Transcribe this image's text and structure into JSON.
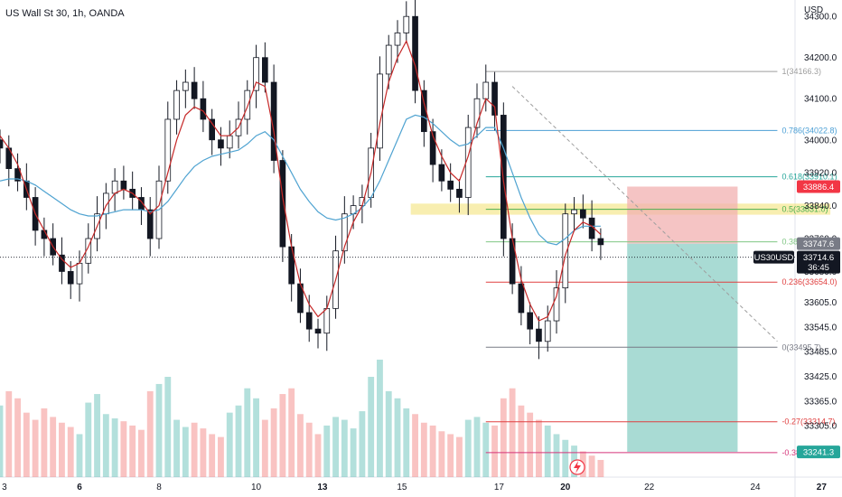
{
  "symbol_title": "US Wall St 30, 1h, OANDA",
  "colors": {
    "up": "#26a69a",
    "down": "#ef5350",
    "ma_fast": "#c62828",
    "ma_slow": "#4fa3d1",
    "zone": "#f2e06f",
    "stop": "#f1b0b0",
    "target": "#8ccfc6"
  },
  "chart_data": {
    "type": "candlestick",
    "y_axis_title": "USD",
    "ylim": [
      33180,
      34340
    ],
    "yticks": [
      34300.0,
      34200.0,
      34100.0,
      34000.0,
      33920.0,
      33840.0,
      33760.0,
      33680.0,
      33605.0,
      33545.0,
      33485.0,
      33425.0,
      33365.0,
      33305.0
    ],
    "xlim": [
      0,
      90
    ],
    "xticks": [
      {
        "label": "3",
        "x": 0.5,
        "bold": false
      },
      {
        "label": "6",
        "x": 9,
        "bold": true
      },
      {
        "label": "8",
        "x": 18,
        "bold": false
      },
      {
        "label": "10",
        "x": 29,
        "bold": false
      },
      {
        "label": "13",
        "x": 36.5,
        "bold": true
      },
      {
        "label": "15",
        "x": 45.5,
        "bold": false
      },
      {
        "label": "17",
        "x": 56.5,
        "bold": false
      },
      {
        "label": "20",
        "x": 64,
        "bold": true
      },
      {
        "label": "22",
        "x": 73.5,
        "bold": false
      },
      {
        "label": "24",
        "x": 85.5,
        "bold": false
      },
      {
        "label": "27",
        "x": 93,
        "bold": true
      }
    ],
    "close": [
      33980,
      33930,
      33900,
      33860,
      33780,
      33760,
      33720,
      33680,
      33650,
      33700,
      33760,
      33820,
      33870,
      33900,
      33880,
      33860,
      33830,
      33760,
      33900,
      34050,
      34120,
      34140,
      34100,
      34050,
      34000,
      33980,
      34010,
      34050,
      34120,
      34200,
      34140,
      33950,
      33740,
      33650,
      33580,
      33540,
      33530,
      33590,
      33730,
      33820,
      33840,
      33860,
      33980,
      34160,
      34230,
      34260,
      34300,
      34120,
      34020,
      33940,
      33900,
      33880,
      33860,
      34030,
      34100,
      34140,
      34060,
      33760,
      33650,
      33580,
      33540,
      33510,
      33560,
      33640,
      33820,
      33830,
      33810,
      33760,
      33745
    ],
    "volume": [
      50,
      60,
      55,
      45,
      40,
      48,
      42,
      38,
      35,
      30,
      52,
      58,
      44,
      41,
      39,
      36,
      33,
      60,
      65,
      70,
      40,
      35,
      38,
      34,
      30,
      28,
      45,
      50,
      62,
      55,
      40,
      48,
      58,
      62,
      44,
      38,
      30,
      36,
      42,
      40,
      34,
      46,
      70,
      82,
      60,
      55,
      48,
      44,
      38,
      36,
      32,
      30,
      28,
      40,
      42,
      38,
      36,
      55,
      62,
      50,
      45,
      40,
      36,
      30,
      26,
      22,
      18,
      15,
      12
    ],
    "ma_fast": [
      34010,
      33980,
      33940,
      33880,
      33820,
      33780,
      33740,
      33710,
      33690,
      33700,
      33740,
      33790,
      33840,
      33870,
      33880,
      33870,
      33850,
      33820,
      33840,
      33920,
      34000,
      34060,
      34080,
      34070,
      34040,
      34010,
      34010,
      34030,
      34080,
      34140,
      34130,
      34020,
      33860,
      33740,
      33650,
      33600,
      33570,
      33590,
      33660,
      33740,
      33800,
      33840,
      33920,
      34040,
      34140,
      34200,
      34240,
      34180,
      34090,
      34010,
      33960,
      33920,
      33900,
      33960,
      34040,
      34100,
      34080,
      33900,
      33760,
      33660,
      33600,
      33560,
      33570,
      33620,
      33720,
      33780,
      33800,
      33790,
      33770
    ],
    "ma_slow": [
      33900,
      33905,
      33905,
      33900,
      33890,
      33875,
      33860,
      33845,
      33830,
      33820,
      33815,
      33815,
      33820,
      33825,
      33830,
      33830,
      33830,
      33825,
      33830,
      33850,
      33880,
      33910,
      33935,
      33950,
      33960,
      33965,
      33970,
      33975,
      33990,
      34010,
      34020,
      34000,
      33960,
      33920,
      33880,
      33850,
      33825,
      33810,
      33805,
      33810,
      33820,
      33835,
      33860,
      33900,
      33950,
      34000,
      34050,
      34060,
      34055,
      34040,
      34020,
      34000,
      33985,
      33990,
      34010,
      34030,
      34030,
      33980,
      33920,
      33860,
      33810,
      33770,
      33750,
      33745,
      33760,
      33780,
      33790,
      33790,
      33790
    ],
    "fib_levels": [
      {
        "label": "1(34166.3)",
        "price": 34166.3,
        "color": "#9e9e9e"
      },
      {
        "label": "0.786(34022.8)",
        "price": 34022.8,
        "color": "#4b9fd5"
      },
      {
        "label": "0.618(33910.1)",
        "price": 33910.1,
        "color": "#26a69a"
      },
      {
        "label": "0.5(33831.0)",
        "price": 33831.0,
        "color": "#4caf50"
      },
      {
        "label": "0.382(33751.9)",
        "price": 33751.9,
        "color": "#81c784"
      },
      {
        "label": "0.236(33654.0)",
        "price": 33654.0,
        "color": "#e04040"
      },
      {
        "label": "0(33495.7)",
        "price": 33495.7,
        "color": "#787b86"
      },
      {
        "label": "-0.27(33314.7)",
        "price": 33314.7,
        "color": "#e04040"
      },
      {
        "label": "-0.382(33239.6)",
        "price": 33239.6,
        "color": "#d5357a"
      }
    ],
    "fib_x_range": [
      55,
      88
    ],
    "fib_label_x": 88,
    "resistance_zone": {
      "x0": 46.5,
      "x1": 94,
      "y0": 33818,
      "y1": 33845
    },
    "position": {
      "x0": 71,
      "x1": 83.5,
      "entry": 33747.6,
      "stop": 33886.4,
      "target": 33241.3
    },
    "trend_line": {
      "x0": 58,
      "y0": 34130,
      "x1": 88,
      "y1": 33510
    },
    "current_price": 33714.6,
    "price_tags": [
      {
        "text": "33886.4",
        "price": 33886.4,
        "bg": "#f23645"
      },
      {
        "text": "33747.6",
        "price": 33747.6,
        "bg": "#787b86"
      },
      {
        "text": "33241.3",
        "price": 33241.3,
        "bg": "#26a69a"
      }
    ],
    "current_tag": {
      "symbol": "US30USD",
      "price_text": "33714.6",
      "countdown": "36:45"
    }
  }
}
